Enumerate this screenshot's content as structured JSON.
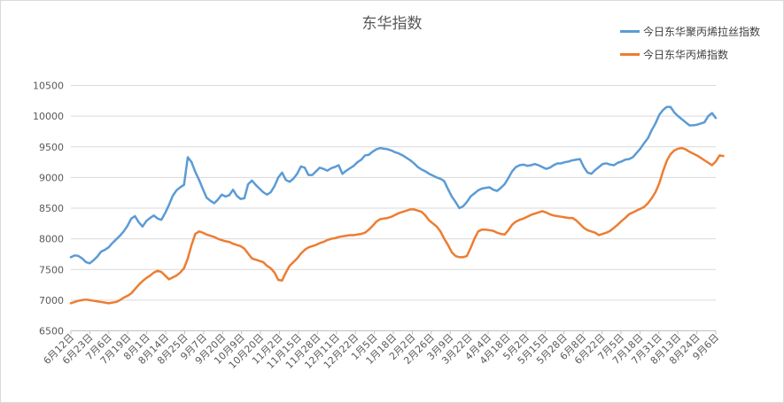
{
  "chart_data": {
    "type": "line",
    "title": "东华指数",
    "xlabel": "",
    "ylabel": "",
    "ylim": [
      6500,
      10500
    ],
    "yticks": [
      6500,
      7000,
      7500,
      8000,
      8500,
      9000,
      9500,
      10000,
      10500
    ],
    "grid": "horizontal",
    "legend_position": "top-right",
    "x_tick_labels": [
      "6月12日",
      "6月23日",
      "7月6日",
      "7月19日",
      "8月1日",
      "8月14日",
      "8月25日",
      "9月7日",
      "9月20日",
      "10月9日",
      "10月20日",
      "11月2日",
      "11月15日",
      "11月28日",
      "12月11日",
      "12月22日",
      "1月5日",
      "1月18日",
      "2月2日",
      "2月26日",
      "3月9日",
      "3月22日",
      "4月4日",
      "4月18日",
      "5月2日",
      "5月15日",
      "5月28日",
      "6月8日",
      "6月22日",
      "7月5日",
      "7月18日",
      "7月31日",
      "8月13日",
      "8月24日",
      "9月6日"
    ],
    "series": [
      {
        "name": "今日东华聚丙烯拉丝指数",
        "color": "#5b9bd5",
        "values": [
          7700,
          7730,
          7720,
          7680,
          7620,
          7600,
          7650,
          7710,
          7790,
          7820,
          7860,
          7930,
          7990,
          8050,
          8120,
          8210,
          8330,
          8370,
          8270,
          8200,
          8290,
          8340,
          8380,
          8330,
          8310,
          8420,
          8550,
          8700,
          8790,
          8840,
          8880,
          9330,
          9250,
          9090,
          8960,
          8810,
          8670,
          8620,
          8580,
          8640,
          8720,
          8690,
          8710,
          8800,
          8700,
          8650,
          8660,
          8890,
          8950,
          8880,
          8820,
          8760,
          8720,
          8760,
          8860,
          9000,
          9080,
          8960,
          8930,
          8980,
          9060,
          9180,
          9160,
          9040,
          9040,
          9100,
          9160,
          9140,
          9110,
          9150,
          9170,
          9200,
          9060,
          9110,
          9150,
          9190,
          9250,
          9290,
          9360,
          9370,
          9420,
          9460,
          9480,
          9470,
          9460,
          9440,
          9410,
          9390,
          9360,
          9320,
          9280,
          9230,
          9170,
          9130,
          9100,
          9060,
          9030,
          9000,
          8980,
          8940,
          8810,
          8690,
          8600,
          8500,
          8530,
          8600,
          8690,
          8740,
          8790,
          8820,
          8830,
          8840,
          8800,
          8780,
          8830,
          8890,
          8990,
          9100,
          9170,
          9200,
          9210,
          9190,
          9200,
          9220,
          9200,
          9170,
          9140,
          9160,
          9200,
          9230,
          9230,
          9250,
          9260,
          9280,
          9290,
          9300,
          9170,
          9080,
          9060,
          9120,
          9170,
          9220,
          9230,
          9210,
          9200,
          9240,
          9260,
          9290,
          9300,
          9330,
          9400,
          9470,
          9560,
          9640,
          9770,
          9880,
          10020,
          10100,
          10150,
          10150,
          10060,
          10000,
          9950,
          9900,
          9850,
          9850,
          9860,
          9880,
          9900,
          10000,
          10050,
          9970
        ]
      },
      {
        "name": "今日东华丙烯指数",
        "color": "#ed7d31",
        "values": [
          6950,
          6970,
          6990,
          7000,
          7010,
          7000,
          6990,
          6980,
          6970,
          6960,
          6950,
          6960,
          6970,
          7000,
          7040,
          7070,
          7110,
          7180,
          7250,
          7310,
          7360,
          7400,
          7450,
          7480,
          7460,
          7400,
          7340,
          7370,
          7400,
          7450,
          7520,
          7680,
          7900,
          8080,
          8120,
          8100,
          8070,
          8050,
          8030,
          8000,
          7980,
          7960,
          7950,
          7920,
          7900,
          7880,
          7840,
          7760,
          7680,
          7660,
          7640,
          7620,
          7560,
          7520,
          7450,
          7330,
          7320,
          7450,
          7560,
          7620,
          7680,
          7760,
          7820,
          7860,
          7880,
          7900,
          7930,
          7950,
          7980,
          8000,
          8010,
          8030,
          8040,
          8050,
          8060,
          8060,
          8070,
          8080,
          8100,
          8150,
          8210,
          8280,
          8320,
          8330,
          8340,
          8360,
          8390,
          8420,
          8440,
          8460,
          8480,
          8480,
          8460,
          8440,
          8380,
          8300,
          8250,
          8200,
          8120,
          8000,
          7900,
          7780,
          7720,
          7700,
          7700,
          7720,
          7850,
          8000,
          8120,
          8150,
          8150,
          8140,
          8130,
          8100,
          8080,
          8070,
          8140,
          8230,
          8280,
          8310,
          8330,
          8360,
          8390,
          8410,
          8430,
          8450,
          8430,
          8400,
          8380,
          8370,
          8360,
          8350,
          8340,
          8340,
          8300,
          8240,
          8180,
          8140,
          8120,
          8100,
          8060,
          8080,
          8100,
          8130,
          8180,
          8230,
          8290,
          8340,
          8400,
          8430,
          8460,
          8490,
          8520,
          8580,
          8660,
          8760,
          8900,
          9100,
          9270,
          9380,
          9440,
          9470,
          9480,
          9460,
          9420,
          9390,
          9360,
          9320,
          9280,
          9240,
          9200,
          9260,
          9360,
          9350
        ]
      }
    ]
  }
}
